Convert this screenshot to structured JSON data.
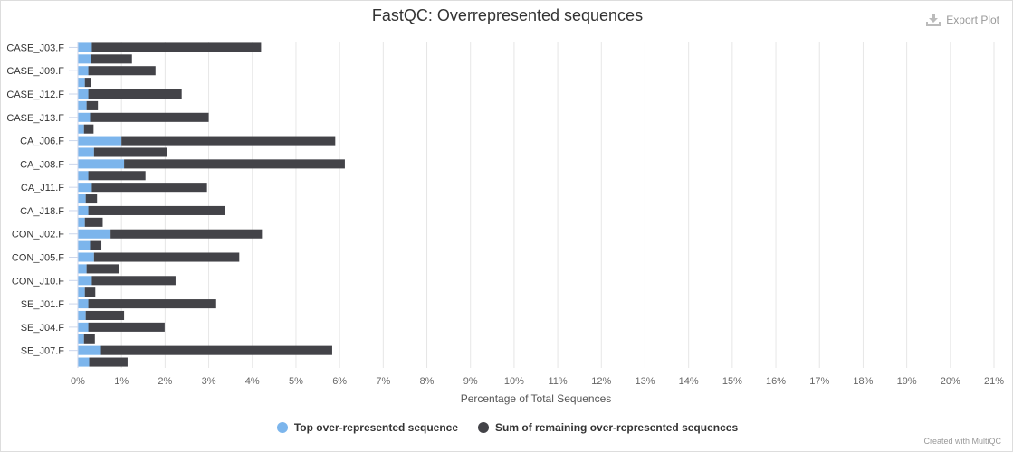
{
  "toolbar": {
    "export_label": "Export Plot",
    "export_icon": "download-icon"
  },
  "credit": "Created with MultiQC",
  "chart_data": {
    "type": "bar",
    "orientation": "horizontal",
    "stacked": true,
    "title": "FastQC: Overrepresented sequences",
    "xlabel": "Percentage of Total Sequences",
    "ylabel": "",
    "xlim": [
      0,
      21
    ],
    "x_ticks": [
      "0%",
      "1%",
      "2%",
      "3%",
      "4%",
      "5%",
      "6%",
      "7%",
      "8%",
      "9%",
      "10%",
      "11%",
      "12%",
      "13%",
      "14%",
      "15%",
      "16%",
      "17%",
      "18%",
      "19%",
      "20%",
      "21%"
    ],
    "grid": true,
    "legend_position": "bottom-center",
    "categories": [
      "CASE_J03.F",
      "",
      "CASE_J09.F",
      "",
      "CASE_J12.F",
      "",
      "CASE_J13.F",
      "",
      "CA_J06.F",
      "",
      "CA_J08.F",
      "",
      "CA_J11.F",
      "",
      "CA_J18.F",
      "",
      "CON_J02.F",
      "",
      "CON_J05.F",
      "",
      "CON_J10.F",
      "",
      "SE_J01.F",
      "",
      "SE_J04.F",
      "",
      "SE_J07.F",
      ""
    ],
    "series": [
      {
        "name": "Top over-represented sequence",
        "color": "#7cb5ec",
        "values": [
          0.32,
          0.3,
          0.24,
          0.16,
          0.24,
          0.2,
          0.28,
          0.14,
          1.0,
          0.37,
          1.06,
          0.24,
          0.32,
          0.18,
          0.24,
          0.16,
          0.75,
          0.28,
          0.37,
          0.2,
          0.32,
          0.16,
          0.24,
          0.18,
          0.24,
          0.14,
          0.53,
          0.26
        ]
      },
      {
        "name": "Sum of remaining over-represented sequences",
        "color": "#434348",
        "values": [
          3.88,
          0.94,
          1.54,
          0.14,
          2.14,
          0.26,
          2.72,
          0.22,
          4.9,
          1.68,
          5.06,
          1.31,
          2.64,
          0.26,
          3.13,
          0.41,
          3.47,
          0.26,
          3.33,
          0.75,
          1.92,
          0.24,
          2.93,
          0.88,
          1.75,
          0.25,
          5.3,
          0.88
        ]
      }
    ]
  }
}
